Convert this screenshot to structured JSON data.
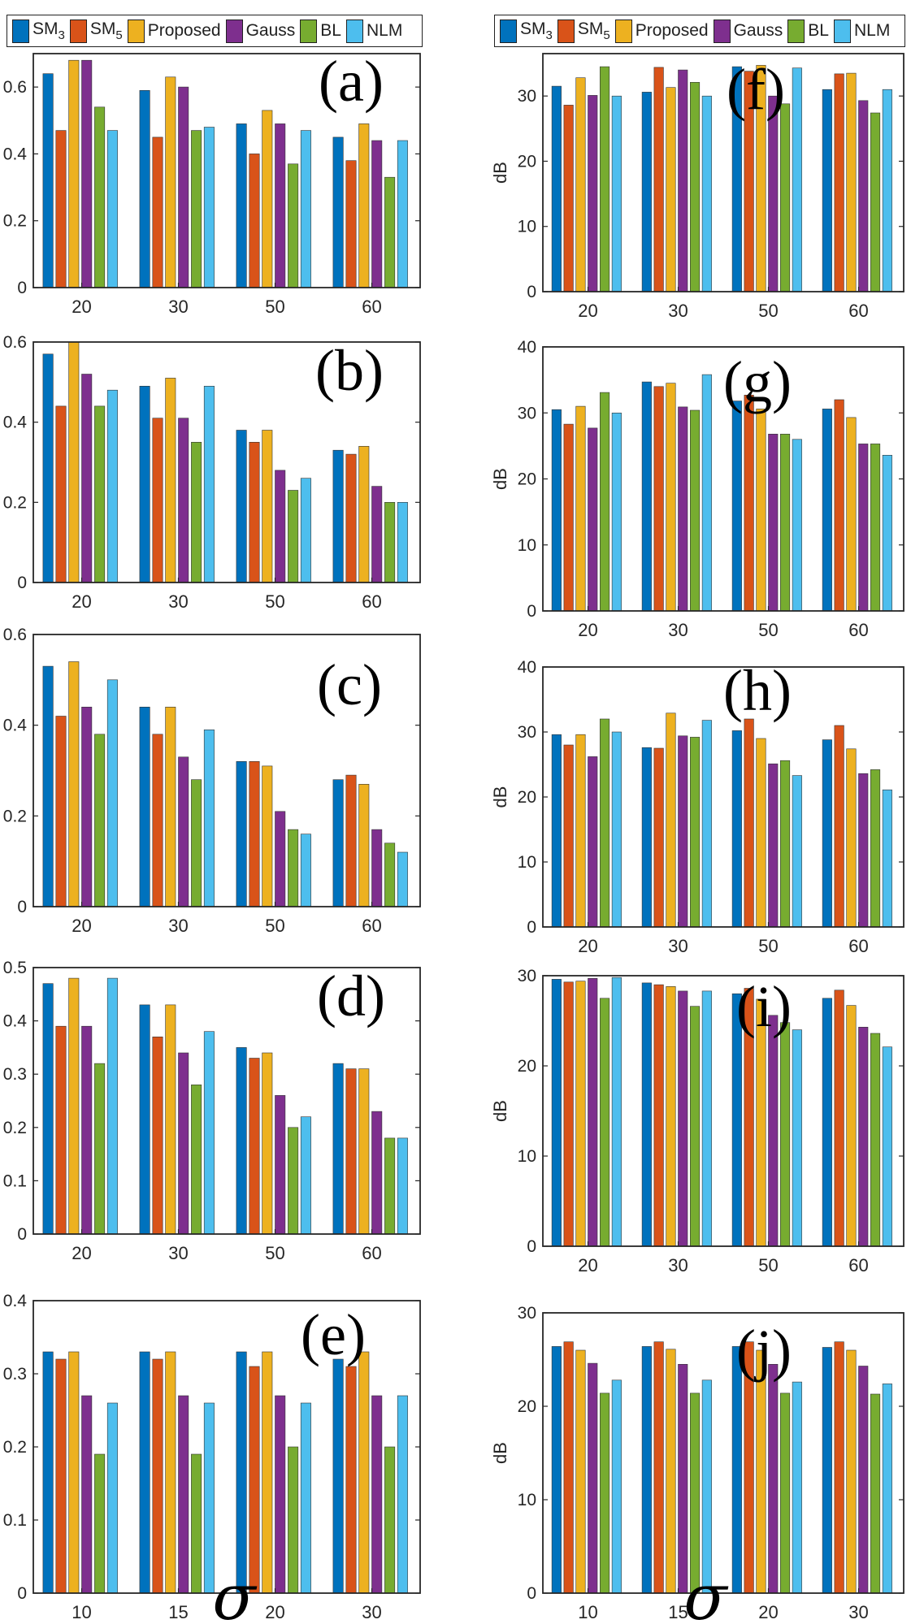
{
  "legend": {
    "entries": [
      {
        "label": "SM",
        "sub": "3",
        "color": "#0072BD"
      },
      {
        "label": "SM",
        "sub": "5",
        "color": "#D95319"
      },
      {
        "label": "Proposed",
        "sub": "",
        "color": "#EDB120"
      },
      {
        "label": "Gauss",
        "sub": "",
        "color": "#7E2F8E"
      },
      {
        "label": "BL",
        "sub": "",
        "color": "#77AC30"
      },
      {
        "label": "NLM",
        "sub": "",
        "color": "#4DBEEE"
      }
    ]
  },
  "xlabel_symbol": "σ",
  "chart_data": [
    {
      "id": "a",
      "panel_label": "(a)",
      "type": "bar",
      "categories": [
        "20",
        "30",
        "50",
        "60"
      ],
      "ylim": [
        0,
        0.7
      ],
      "yticks": [
        "0",
        "0.2",
        "0.4",
        "0.6"
      ],
      "ytick_values": [
        0,
        0.2,
        0.4,
        0.6
      ],
      "ylabel": "",
      "series": [
        {
          "name": "SM3",
          "values": [
            0.64,
            0.59,
            0.49,
            0.45
          ]
        },
        {
          "name": "SM5",
          "values": [
            0.47,
            0.45,
            0.4,
            0.38
          ]
        },
        {
          "name": "Proposed",
          "values": [
            0.68,
            0.63,
            0.53,
            0.49
          ]
        },
        {
          "name": "Gauss",
          "values": [
            0.68,
            0.6,
            0.49,
            0.44
          ]
        },
        {
          "name": "BL",
          "values": [
            0.54,
            0.47,
            0.37,
            0.33
          ]
        },
        {
          "name": "NLM",
          "values": [
            0.47,
            0.48,
            0.47,
            0.44
          ]
        }
      ]
    },
    {
      "id": "f",
      "panel_label": "(f)",
      "type": "bar",
      "categories": [
        "20",
        "30",
        "50",
        "60"
      ],
      "ylim": [
        0,
        36.5
      ],
      "yticks": [
        "0",
        "10",
        "20",
        "30"
      ],
      "ytick_values": [
        0,
        10,
        20,
        30
      ],
      "ylabel": "dB",
      "series": [
        {
          "name": "SM3",
          "values": [
            31.5,
            30.6,
            34.5,
            31.0
          ]
        },
        {
          "name": "SM5",
          "values": [
            28.6,
            34.4,
            33.8,
            33.4
          ]
        },
        {
          "name": "Proposed",
          "values": [
            32.8,
            31.3,
            34.7,
            33.5
          ]
        },
        {
          "name": "Gauss",
          "values": [
            30.1,
            34.0,
            30.0,
            29.3
          ]
        },
        {
          "name": "BL",
          "values": [
            34.5,
            32.1,
            28.8,
            27.4
          ]
        },
        {
          "name": "NLM",
          "values": [
            30.0,
            30.0,
            34.3,
            31.0
          ]
        }
      ]
    },
    {
      "id": "b",
      "panel_label": "(b)",
      "type": "bar",
      "categories": [
        "20",
        "30",
        "50",
        "60"
      ],
      "ylim": [
        0,
        0.6
      ],
      "yticks": [
        "0",
        "0.2",
        "0.4",
        "0.6"
      ],
      "ytick_values": [
        0,
        0.2,
        0.4,
        0.6
      ],
      "ylabel": "",
      "series": [
        {
          "name": "SM3",
          "values": [
            0.57,
            0.49,
            0.38,
            0.33
          ]
        },
        {
          "name": "SM5",
          "values": [
            0.44,
            0.41,
            0.35,
            0.32
          ]
        },
        {
          "name": "Proposed",
          "values": [
            0.6,
            0.51,
            0.38,
            0.34
          ]
        },
        {
          "name": "Gauss",
          "values": [
            0.52,
            0.41,
            0.28,
            0.24
          ]
        },
        {
          "name": "BL",
          "values": [
            0.44,
            0.35,
            0.23,
            0.2
          ]
        },
        {
          "name": "NLM",
          "values": [
            0.48,
            0.49,
            0.26,
            0.2
          ]
        }
      ]
    },
    {
      "id": "g",
      "panel_label": "(g)",
      "type": "bar",
      "categories": [
        "20",
        "30",
        "50",
        "60"
      ],
      "ylim": [
        0,
        40
      ],
      "yticks": [
        "0",
        "10",
        "20",
        "30",
        "40"
      ],
      "ytick_values": [
        0,
        10,
        20,
        30,
        40
      ],
      "ylabel": "dB",
      "series": [
        {
          "name": "SM3",
          "values": [
            30.5,
            34.7,
            31.8,
            30.6
          ]
        },
        {
          "name": "SM5",
          "values": [
            28.3,
            34.0,
            32.7,
            32.0
          ]
        },
        {
          "name": "Proposed",
          "values": [
            31.0,
            34.5,
            30.6,
            29.3
          ]
        },
        {
          "name": "Gauss",
          "values": [
            27.7,
            30.9,
            26.8,
            25.3
          ]
        },
        {
          "name": "BL",
          "values": [
            33.1,
            30.4,
            26.8,
            25.3
          ]
        },
        {
          "name": "NLM",
          "values": [
            30.0,
            35.8,
            26.0,
            23.6
          ]
        }
      ]
    },
    {
      "id": "c",
      "panel_label": "(c)",
      "type": "bar",
      "categories": [
        "20",
        "30",
        "50",
        "60"
      ],
      "ylim": [
        0,
        0.6
      ],
      "yticks": [
        "0",
        "0.2",
        "0.4",
        "0.6"
      ],
      "ytick_values": [
        0,
        0.2,
        0.4,
        0.6
      ],
      "ylabel": "",
      "series": [
        {
          "name": "SM3",
          "values": [
            0.53,
            0.44,
            0.32,
            0.28
          ]
        },
        {
          "name": "SM5",
          "values": [
            0.42,
            0.38,
            0.32,
            0.29
          ]
        },
        {
          "name": "Proposed",
          "values": [
            0.54,
            0.44,
            0.31,
            0.27
          ]
        },
        {
          "name": "Gauss",
          "values": [
            0.44,
            0.33,
            0.21,
            0.17
          ]
        },
        {
          "name": "BL",
          "values": [
            0.38,
            0.28,
            0.17,
            0.14
          ]
        },
        {
          "name": "NLM",
          "values": [
            0.5,
            0.39,
            0.16,
            0.12
          ]
        }
      ]
    },
    {
      "id": "h",
      "panel_label": "(h)",
      "type": "bar",
      "categories": [
        "20",
        "30",
        "50",
        "60"
      ],
      "ylim": [
        0,
        40
      ],
      "yticks": [
        "0",
        "10",
        "20",
        "30",
        "40"
      ],
      "ytick_values": [
        0,
        10,
        20,
        30,
        40
      ],
      "ylabel": "dB",
      "series": [
        {
          "name": "SM3",
          "values": [
            29.6,
            27.6,
            30.2,
            28.8
          ]
        },
        {
          "name": "SM5",
          "values": [
            28.0,
            27.5,
            32.0,
            31.0
          ]
        },
        {
          "name": "Proposed",
          "values": [
            29.6,
            32.9,
            29.0,
            27.4
          ]
        },
        {
          "name": "Gauss",
          "values": [
            26.2,
            29.4,
            25.1,
            23.6
          ]
        },
        {
          "name": "BL",
          "values": [
            32.0,
            29.2,
            25.6,
            24.2
          ]
        },
        {
          "name": "NLM",
          "values": [
            30.0,
            31.8,
            23.3,
            21.1
          ]
        }
      ]
    },
    {
      "id": "d",
      "panel_label": "(d)",
      "type": "bar",
      "categories": [
        "20",
        "30",
        "50",
        "60"
      ],
      "ylim": [
        0,
        0.5
      ],
      "yticks": [
        "0",
        "0.1",
        "0.2",
        "0.3",
        "0.4",
        "0.5"
      ],
      "ytick_values": [
        0,
        0.1,
        0.2,
        0.3,
        0.4,
        0.5
      ],
      "ylabel": "",
      "series": [
        {
          "name": "SM3",
          "values": [
            0.47,
            0.43,
            0.35,
            0.32
          ]
        },
        {
          "name": "SM5",
          "values": [
            0.39,
            0.37,
            0.33,
            0.31
          ]
        },
        {
          "name": "Proposed",
          "values": [
            0.48,
            0.43,
            0.34,
            0.31
          ]
        },
        {
          "name": "Gauss",
          "values": [
            0.39,
            0.34,
            0.26,
            0.23
          ]
        },
        {
          "name": "BL",
          "values": [
            0.32,
            0.28,
            0.2,
            0.18
          ]
        },
        {
          "name": "NLM",
          "values": [
            0.48,
            0.38,
            0.22,
            0.18
          ]
        }
      ]
    },
    {
      "id": "i",
      "panel_label": "(i)",
      "type": "bar",
      "categories": [
        "20",
        "30",
        "50",
        "60"
      ],
      "ylim": [
        0,
        30
      ],
      "yticks": [
        "0",
        "10",
        "20",
        "30"
      ],
      "ytick_values": [
        0,
        10,
        20,
        30
      ],
      "ylabel": "dB",
      "series": [
        {
          "name": "SM3",
          "values": [
            29.6,
            29.2,
            28.0,
            27.5
          ]
        },
        {
          "name": "SM5",
          "values": [
            29.3,
            29.0,
            28.6,
            28.4
          ]
        },
        {
          "name": "Proposed",
          "values": [
            29.4,
            28.8,
            27.4,
            26.7
          ]
        },
        {
          "name": "Gauss",
          "values": [
            29.7,
            28.3,
            25.6,
            24.3
          ]
        },
        {
          "name": "BL",
          "values": [
            27.5,
            26.6,
            24.8,
            23.6
          ]
        },
        {
          "name": "NLM",
          "values": [
            29.8,
            28.3,
            24.0,
            22.1
          ]
        }
      ]
    },
    {
      "id": "e",
      "panel_label": "(e)",
      "type": "bar",
      "categories": [
        "10",
        "15",
        "20",
        "30"
      ],
      "ylim": [
        0,
        0.4
      ],
      "yticks": [
        "0",
        "0.1",
        "0.2",
        "0.3",
        "0.4"
      ],
      "ytick_values": [
        0,
        0.1,
        0.2,
        0.3,
        0.4
      ],
      "ylabel": "",
      "series": [
        {
          "name": "SM3",
          "values": [
            0.33,
            0.33,
            0.33,
            0.32
          ]
        },
        {
          "name": "SM5",
          "values": [
            0.32,
            0.32,
            0.31,
            0.31
          ]
        },
        {
          "name": "Proposed",
          "values": [
            0.33,
            0.33,
            0.33,
            0.33
          ]
        },
        {
          "name": "Gauss",
          "values": [
            0.27,
            0.27,
            0.27,
            0.27
          ]
        },
        {
          "name": "BL",
          "values": [
            0.19,
            0.19,
            0.2,
            0.2
          ]
        },
        {
          "name": "NLM",
          "values": [
            0.26,
            0.26,
            0.26,
            0.27
          ]
        }
      ]
    },
    {
      "id": "j",
      "panel_label": "(j)",
      "type": "bar",
      "categories": [
        "10",
        "15",
        "20",
        "30"
      ],
      "ylim": [
        0,
        30
      ],
      "yticks": [
        "0",
        "10",
        "20",
        "30"
      ],
      "ytick_values": [
        0,
        10,
        20,
        30
      ],
      "ylabel": "dB",
      "series": [
        {
          "name": "SM3",
          "values": [
            26.4,
            26.4,
            26.4,
            26.3
          ]
        },
        {
          "name": "SM5",
          "values": [
            26.9,
            26.9,
            26.9,
            26.9
          ]
        },
        {
          "name": "Proposed",
          "values": [
            26.0,
            26.1,
            26.0,
            26.0
          ]
        },
        {
          "name": "Gauss",
          "values": [
            24.6,
            24.5,
            24.5,
            24.3
          ]
        },
        {
          "name": "BL",
          "values": [
            21.4,
            21.4,
            21.4,
            21.3
          ]
        },
        {
          "name": "NLM",
          "values": [
            22.8,
            22.8,
            22.6,
            22.4
          ]
        }
      ]
    }
  ]
}
